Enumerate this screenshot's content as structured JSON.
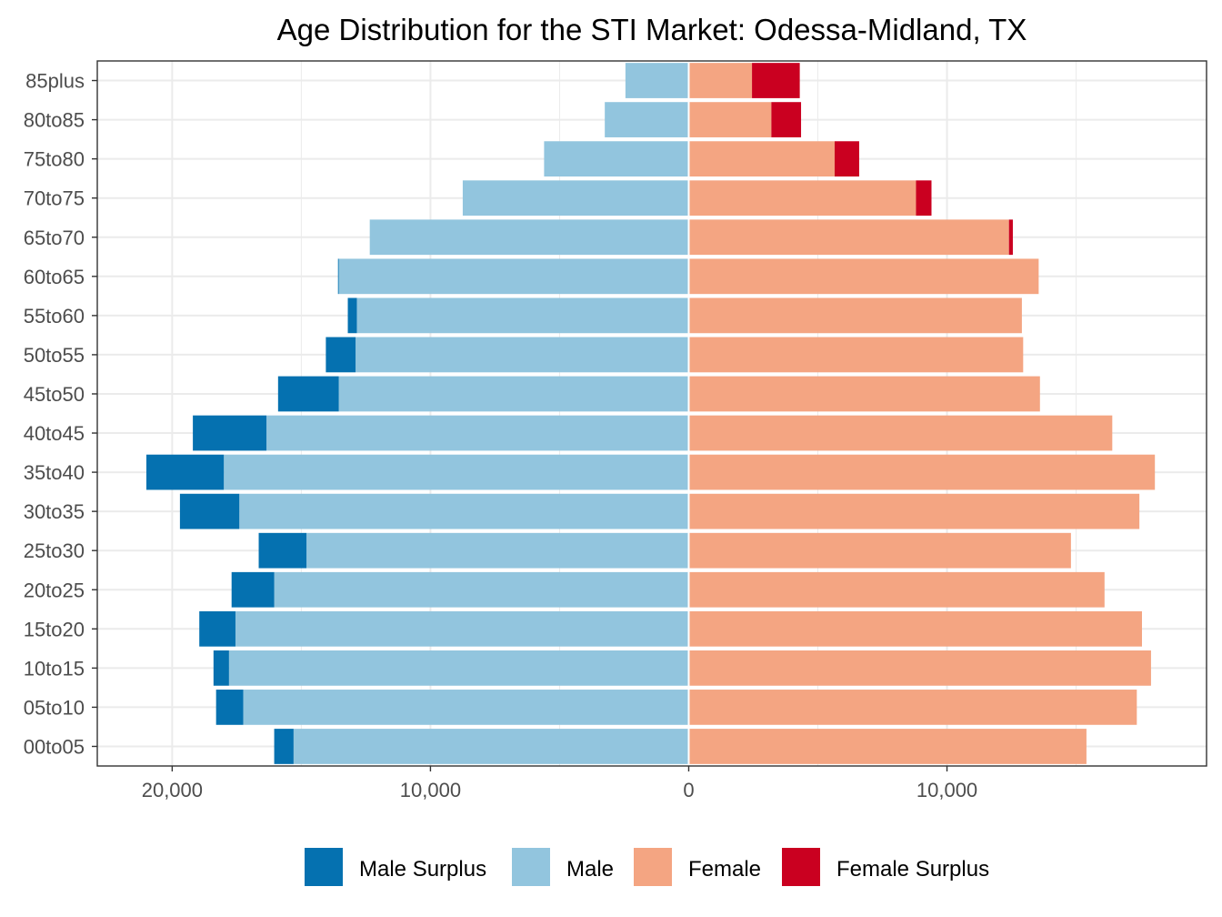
{
  "chart_data": {
    "type": "bar",
    "orientation": "horizontal-diverging",
    "title": "Age Distribution for the STI Market: Odessa-Midland, TX",
    "xlabel": "",
    "ylabel": "",
    "xlim": [
      -22900,
      20050
    ],
    "grid": true,
    "legend_position": "bottom",
    "categories": [
      "00to05",
      "05to10",
      "10to15",
      "15to20",
      "20to25",
      "25to30",
      "30to35",
      "35to40",
      "40to45",
      "45to50",
      "50to55",
      "55to60",
      "60to65",
      "65to70",
      "70to75",
      "75to80",
      "80to85",
      "85plus"
    ],
    "x_ticks": [
      {
        "value": -20000,
        "label": "20,000"
      },
      {
        "value": -10000,
        "label": "10,000"
      },
      {
        "value": 0,
        "label": "0"
      },
      {
        "value": 10000,
        "label": "10,000"
      }
    ],
    "series": [
      {
        "name": "Male Surplus",
        "key": "male_surplus",
        "color": "#0571b0",
        "values": [
          750,
          1050,
          600,
          1400,
          1650,
          1850,
          2300,
          3000,
          2850,
          2350,
          1150,
          350,
          30,
          0,
          0,
          0,
          0,
          0
        ]
      },
      {
        "name": "Male",
        "key": "male",
        "color": "#92c5de",
        "values": [
          15300,
          17250,
          17800,
          17550,
          16050,
          14800,
          17400,
          18000,
          16350,
          13550,
          12900,
          12850,
          13550,
          12350,
          8750,
          5600,
          3250,
          2450
        ]
      },
      {
        "name": "Female",
        "key": "female",
        "color": "#f4a582",
        "values": [
          15400,
          17350,
          17900,
          17550,
          16100,
          14800,
          17450,
          18050,
          16400,
          13600,
          12950,
          12900,
          13550,
          12400,
          8800,
          5650,
          3200,
          2450
        ]
      },
      {
        "name": "Female Surplus",
        "key": "female_surplus",
        "color": "#ca0020",
        "values": [
          0,
          0,
          0,
          0,
          0,
          0,
          0,
          0,
          0,
          0,
          0,
          0,
          0,
          150,
          600,
          950,
          1150,
          1850
        ]
      }
    ]
  }
}
